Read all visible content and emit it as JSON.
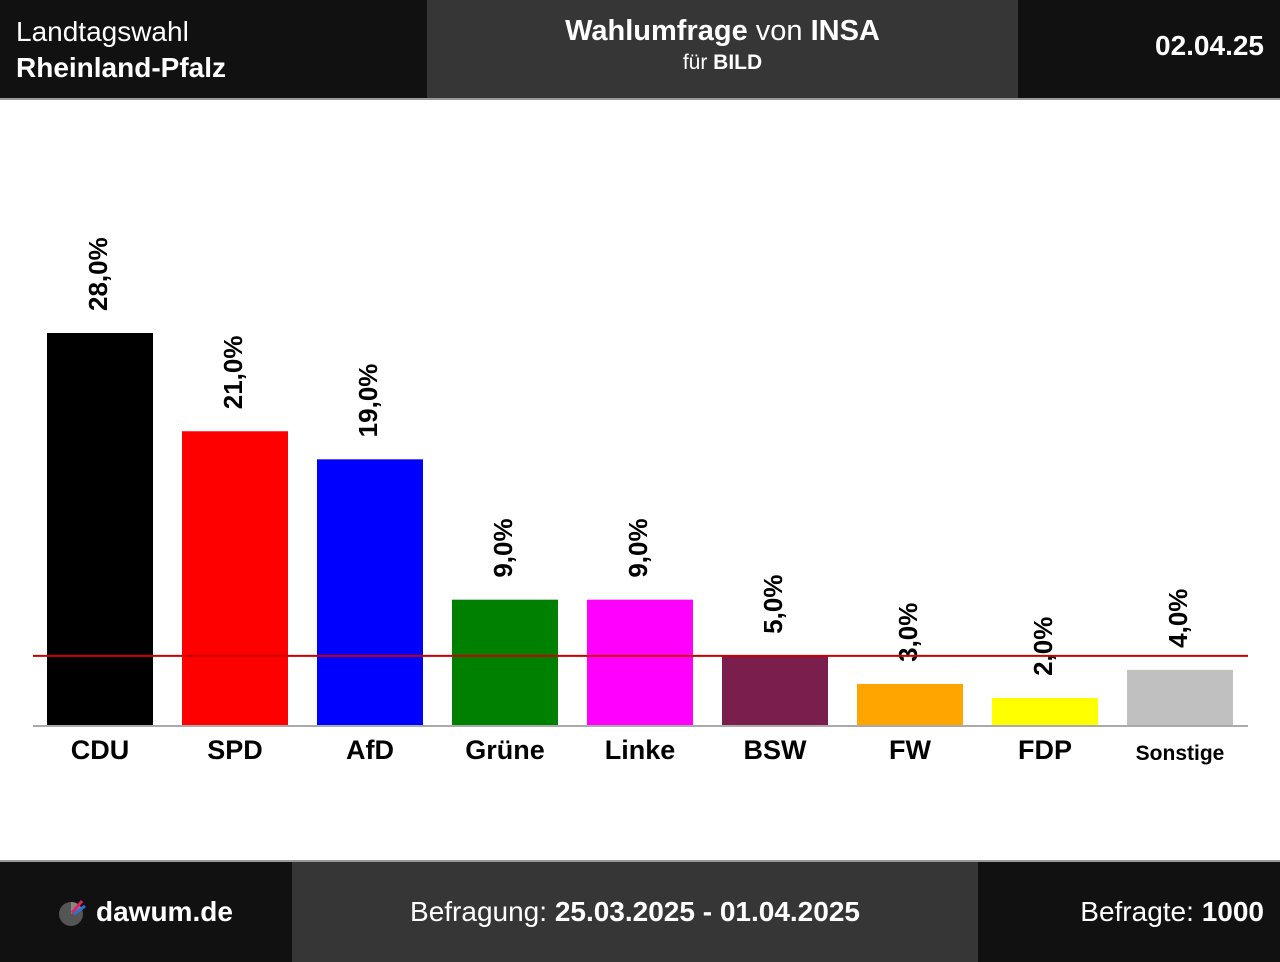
{
  "header": {
    "election_line1": "Landtagswahl",
    "election_line2": "Rheinland-Pfalz",
    "survey_word": "Wahlumfrage",
    "von_word": "von",
    "institute": "INSA",
    "fuer_word": "für",
    "client": "BILD",
    "date": "02.04.25"
  },
  "footer": {
    "site": "dawum.de",
    "period_label": "Befragung:",
    "period_value": "25.03.2025 - 01.04.2025",
    "respondents_label": "Befragte:",
    "respondents_value": "1000"
  },
  "chart_data": {
    "type": "bar",
    "categories": [
      "CDU",
      "SPD",
      "AfD",
      "Grüne",
      "Linke",
      "BSW",
      "FW",
      "FDP",
      "Sonstige"
    ],
    "values": [
      28.0,
      21.0,
      19.0,
      9.0,
      9.0,
      5.0,
      3.0,
      2.0,
      4.0
    ],
    "value_labels": [
      "28,0%",
      "21,0%",
      "19,0%",
      "9,0%",
      "9,0%",
      "5,0%",
      "3,0%",
      "2,0%",
      "4,0%"
    ],
    "colors": [
      "#000000",
      "#ff0000",
      "#0000ff",
      "#008000",
      "#ff00ff",
      "#7a1f4d",
      "#ffa500",
      "#ffff00",
      "#c0c0c0"
    ],
    "threshold": 5.0,
    "threshold_color": "#cc0000",
    "ylim": [
      0,
      28.0
    ],
    "grid": false,
    "title": "",
    "xlabel": "",
    "ylabel": ""
  }
}
